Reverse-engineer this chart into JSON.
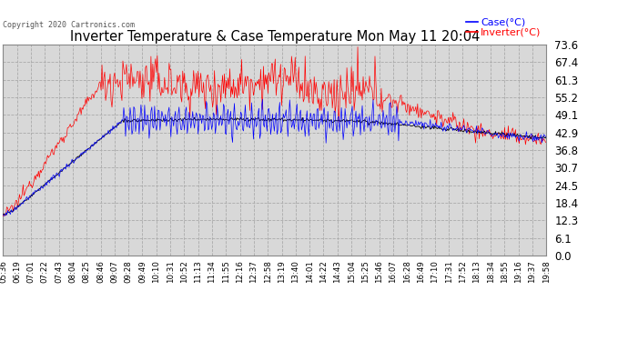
{
  "title": "Inverter Temperature & Case Temperature Mon May 11 20:04",
  "copyright": "Copyright 2020 Cartronics.com",
  "legend_case": "Case(°C)",
  "legend_inverter": "Inverter(°C)",
  "yticks": [
    0.0,
    6.1,
    12.3,
    18.4,
    24.5,
    30.7,
    36.8,
    42.9,
    49.1,
    55.2,
    61.3,
    67.4,
    73.6
  ],
  "ymin": 0.0,
  "ymax": 73.6,
  "bg_color": "#ffffff",
  "plot_bg_color": "#d8d8d8",
  "grid_color": "#ffffff",
  "case_color": "#0000ff",
  "inverter_color": "#ff0000",
  "black_color": "#000000",
  "n_points": 600,
  "xtick_labels": [
    "05:36",
    "06:19",
    "07:01",
    "07:22",
    "07:43",
    "08:04",
    "08:25",
    "08:46",
    "09:07",
    "09:28",
    "09:49",
    "10:10",
    "10:31",
    "10:52",
    "11:13",
    "11:34",
    "11:55",
    "12:16",
    "12:37",
    "12:58",
    "13:19",
    "13:40",
    "14:01",
    "14:22",
    "14:43",
    "15:04",
    "15:25",
    "15:46",
    "16:07",
    "16:28",
    "16:49",
    "17:10",
    "17:31",
    "17:52",
    "18:13",
    "18:34",
    "18:55",
    "19:16",
    "19:37",
    "19:58"
  ]
}
